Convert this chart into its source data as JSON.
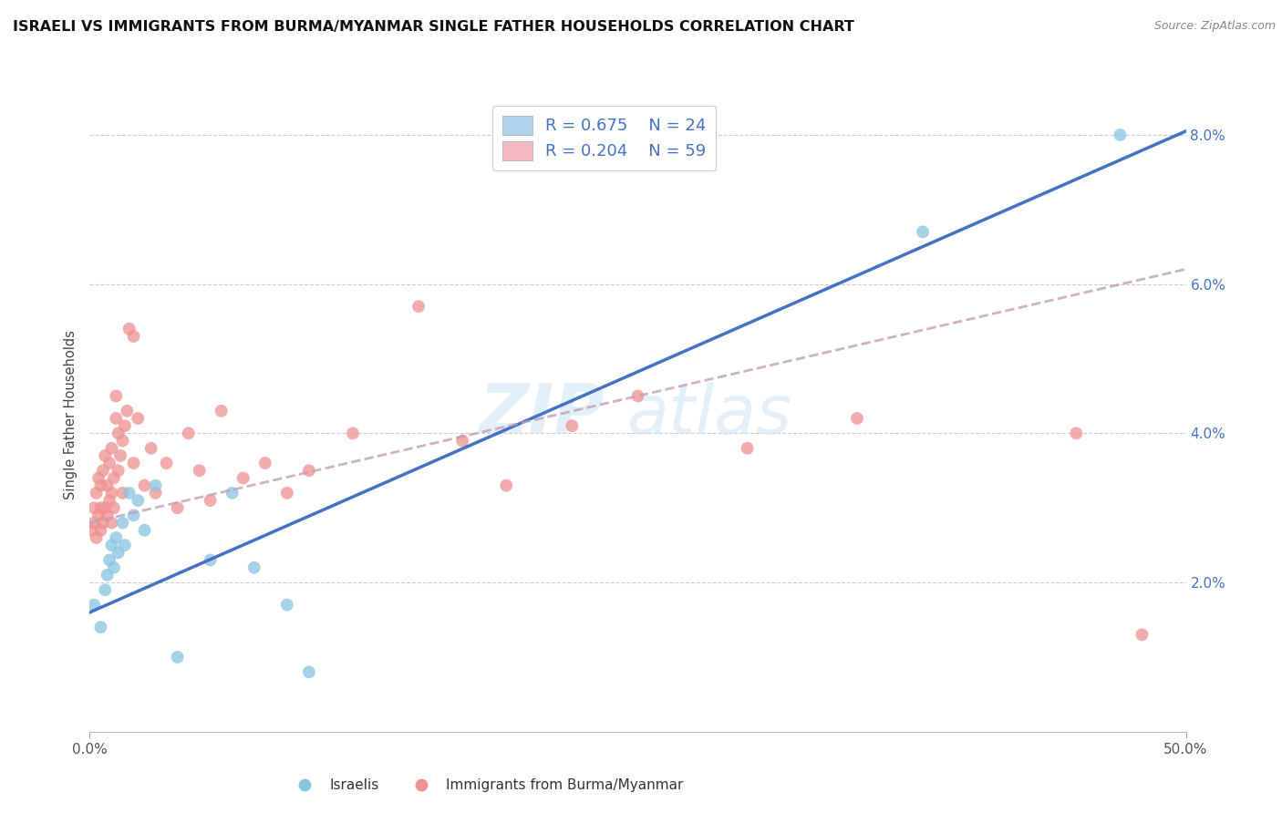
{
  "title": "ISRAELI VS IMMIGRANTS FROM BURMA/MYANMAR SINGLE FATHER HOUSEHOLDS CORRELATION CHART",
  "source": "Source: ZipAtlas.com",
  "ylabel": "Single Father Households",
  "x_min": 0.0,
  "x_max": 50.0,
  "y_min": 0.0,
  "y_max": 8.5,
  "y_display_max": 8.0,
  "x_ticks": [
    0.0,
    50.0
  ],
  "y_ticks": [
    2.0,
    4.0,
    6.0,
    8.0
  ],
  "watermark_line1": "ZIP",
  "watermark_line2": "atlas",
  "legend_label_r1": "R = 0.675",
  "legend_label_n1": "N = 24",
  "legend_label_r2": "R = 0.204",
  "legend_label_n2": "N = 59",
  "legend_label_israelis": "Israelis",
  "legend_label_burma": "Immigrants from Burma/Myanmar",
  "israeli_scatter_color": "#89c4e1",
  "burma_scatter_color": "#f09090",
  "israeli_line_color": "#4472c4",
  "burma_line_color": "#c0a0b0",
  "israeli_patch_color": "#aed4ee",
  "burma_patch_color": "#f4b8c1",
  "title_fontsize": 11.5,
  "background_color": "#ffffff",
  "israelis_x": [
    0.2,
    0.5,
    0.7,
    0.8,
    0.9,
    1.0,
    1.1,
    1.2,
    1.3,
    1.5,
    1.6,
    1.8,
    2.0,
    2.2,
    2.5,
    3.0,
    4.0,
    5.5,
    6.5,
    7.5,
    9.0,
    10.0,
    38.0,
    47.0
  ],
  "israelis_y": [
    1.7,
    1.4,
    1.9,
    2.1,
    2.3,
    2.5,
    2.2,
    2.6,
    2.4,
    2.8,
    2.5,
    3.2,
    2.9,
    3.1,
    2.7,
    3.3,
    1.0,
    2.3,
    3.2,
    2.2,
    1.7,
    0.8,
    6.7,
    8.0
  ],
  "burma_x": [
    0.1,
    0.2,
    0.2,
    0.3,
    0.3,
    0.4,
    0.4,
    0.5,
    0.5,
    0.5,
    0.6,
    0.6,
    0.7,
    0.7,
    0.8,
    0.8,
    0.9,
    0.9,
    1.0,
    1.0,
    1.0,
    1.1,
    1.1,
    1.2,
    1.2,
    1.3,
    1.3,
    1.4,
    1.5,
    1.5,
    1.6,
    1.7,
    1.8,
    2.0,
    2.0,
    2.2,
    2.5,
    2.8,
    3.0,
    3.5,
    4.0,
    4.5,
    5.0,
    5.5,
    6.0,
    7.0,
    8.0,
    9.0,
    10.0,
    12.0,
    15.0,
    17.0,
    19.0,
    22.0,
    25.0,
    30.0,
    35.0,
    45.0,
    48.0
  ],
  "burma_y": [
    2.7,
    2.8,
    3.0,
    2.6,
    3.2,
    2.9,
    3.4,
    2.7,
    3.0,
    3.3,
    2.8,
    3.5,
    3.0,
    3.7,
    2.9,
    3.3,
    3.1,
    3.6,
    2.8,
    3.2,
    3.8,
    3.0,
    3.4,
    4.2,
    4.5,
    3.5,
    4.0,
    3.7,
    3.2,
    3.9,
    4.1,
    4.3,
    5.4,
    3.6,
    5.3,
    4.2,
    3.3,
    3.8,
    3.2,
    3.6,
    3.0,
    4.0,
    3.5,
    3.1,
    4.3,
    3.4,
    3.6,
    3.2,
    3.5,
    4.0,
    5.7,
    3.9,
    3.3,
    4.1,
    4.5,
    3.8,
    4.2,
    4.0,
    1.3
  ],
  "isr_line_x": [
    0.0,
    50.0
  ],
  "isr_line_y": [
    1.6,
    8.05
  ],
  "burma_line_x": [
    0.0,
    50.0
  ],
  "burma_line_y": [
    2.8,
    6.2
  ]
}
